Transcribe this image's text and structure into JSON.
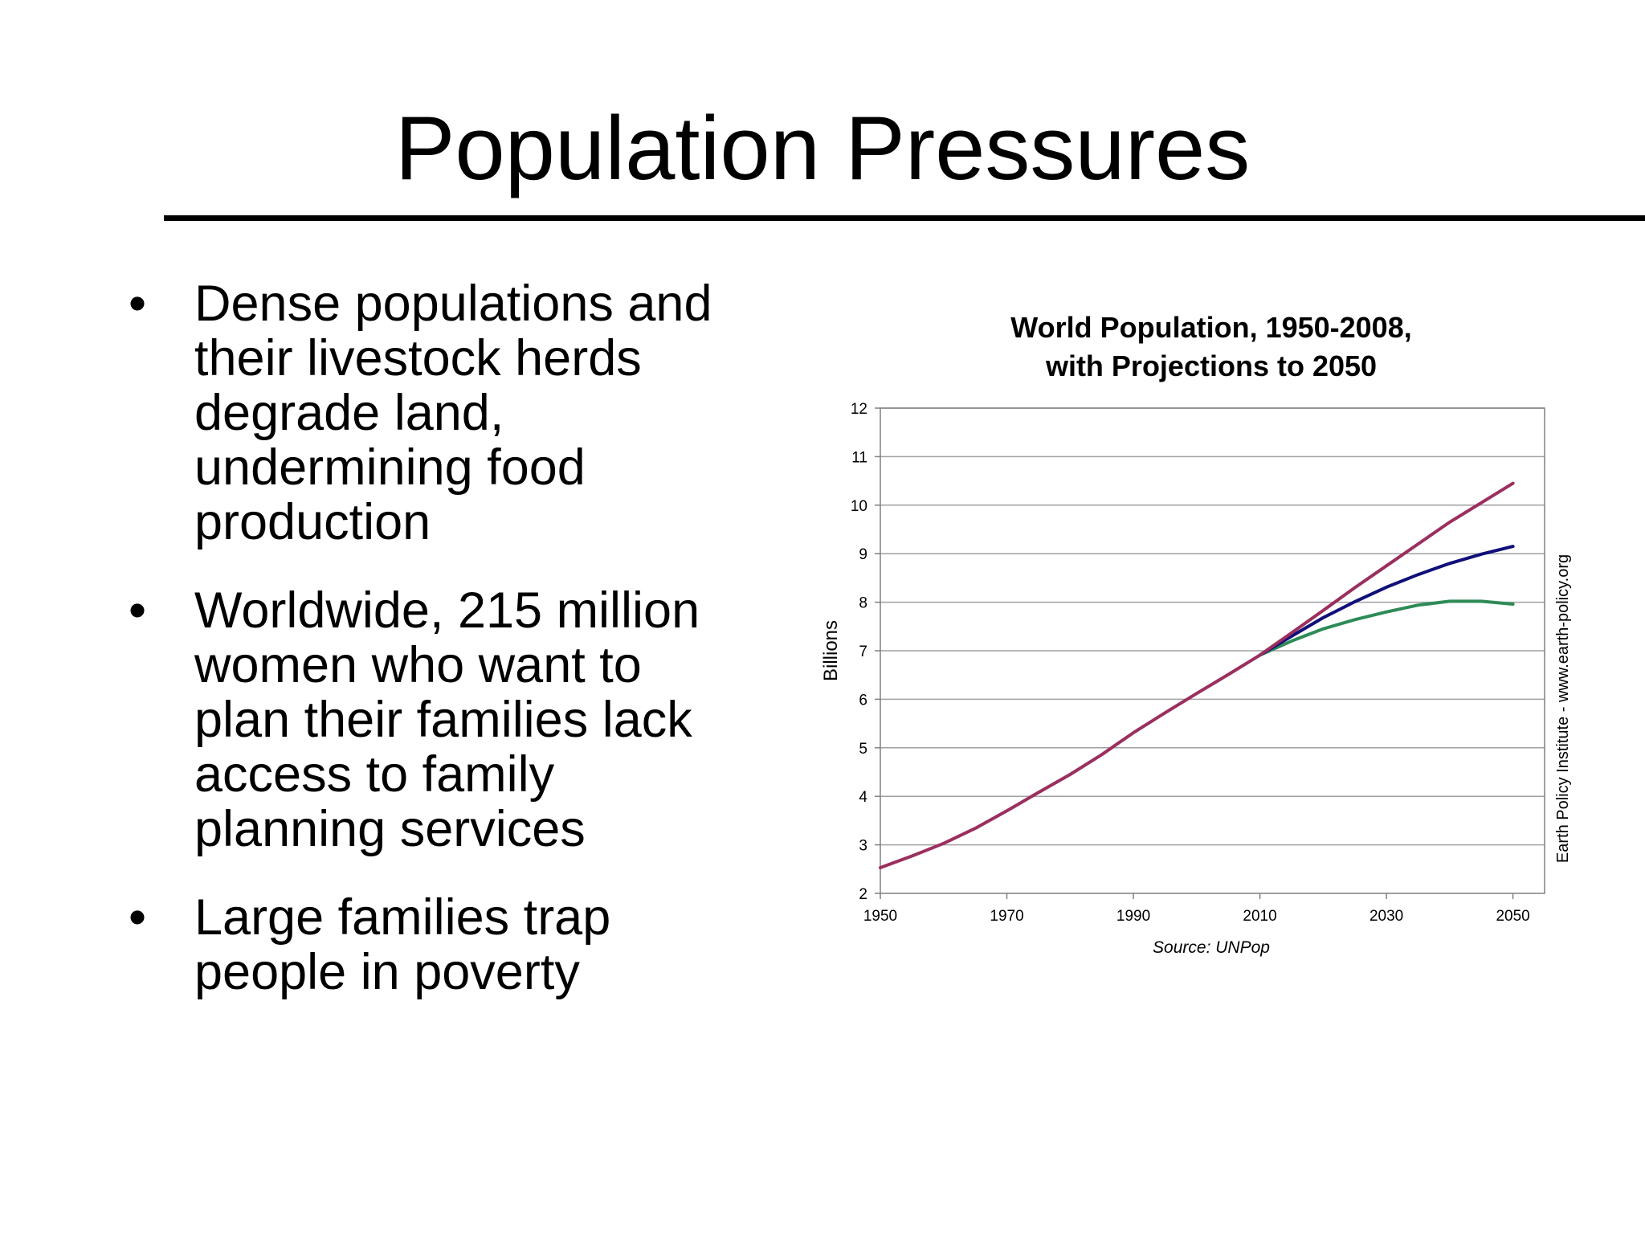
{
  "slide": {
    "title": "Population Pressures",
    "bullets": [
      "Dense populations and their livestock herds degrade land, undermining food production",
      "Worldwide, 215 million women who want to plan their families lack access to family planning services",
      "Large families trap people in poverty"
    ],
    "bullet_symbol": "•"
  },
  "chart_data": {
    "type": "line",
    "title_line1": "World Population, 1950-2008,",
    "title_line2": "with Projections to 2050",
    "ylabel": "Billions",
    "xlabel": "Source: UNPop",
    "side_note": "Earth Policy Institute - www.earth-policy.org",
    "xlim": [
      1950,
      2055
    ],
    "ylim": [
      2,
      12
    ],
    "x_ticks": [
      1950,
      1970,
      1990,
      2010,
      2030,
      2050
    ],
    "y_ticks": [
      2,
      3,
      4,
      5,
      6,
      7,
      8,
      9,
      10,
      11,
      12
    ],
    "grid": true,
    "colors": {
      "high": "#9b2f5e",
      "medium": "#10107a",
      "low": "#2e8b57",
      "grid": "#a0a0a0",
      "axis": "#808080"
    },
    "series": [
      {
        "key": "high",
        "x": [
          1950,
          1955,
          1960,
          1965,
          1970,
          1975,
          1980,
          1985,
          1990,
          1995,
          2000,
          2005,
          2010,
          2015,
          2020,
          2025,
          2030,
          2035,
          2040,
          2045,
          2050
        ],
        "y": [
          2.53,
          2.77,
          3.03,
          3.34,
          3.7,
          4.08,
          4.45,
          4.86,
          5.31,
          5.72,
          6.12,
          6.51,
          6.91,
          7.37,
          7.83,
          8.3,
          8.75,
          9.2,
          9.65,
          10.05,
          10.45
        ]
      },
      {
        "key": "medium",
        "x": [
          2010,
          2015,
          2020,
          2025,
          2030,
          2035,
          2040,
          2045,
          2050
        ],
        "y": [
          6.91,
          7.3,
          7.68,
          8.01,
          8.31,
          8.57,
          8.8,
          8.99,
          9.15
        ]
      },
      {
        "key": "low",
        "x": [
          2010,
          2015,
          2020,
          2025,
          2030,
          2035,
          2040,
          2045,
          2050
        ],
        "y": [
          6.91,
          7.2,
          7.45,
          7.64,
          7.8,
          7.94,
          8.02,
          8.02,
          7.96
        ]
      }
    ]
  }
}
